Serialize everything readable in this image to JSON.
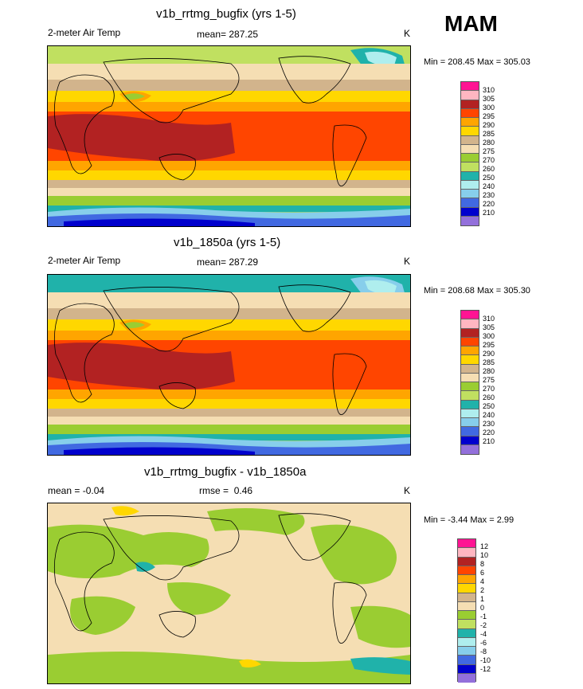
{
  "season": "MAM",
  "panels": [
    {
      "title": "v1b_rrtmg_bugfix (yrs 1-5)",
      "left_label": "2-meter Air Temp",
      "mean_label": "mean=",
      "mean_value": "287.25",
      "units": "K",
      "min_label": "Min = 208.45 Max = 305.03",
      "legend_values": [
        "310",
        "305",
        "300",
        "295",
        "290",
        "285",
        "280",
        "275",
        "270",
        "260",
        "250",
        "240",
        "230",
        "220",
        "210"
      ]
    },
    {
      "title": "v1b_1850a (yrs 1-5)",
      "left_label": "2-meter Air Temp",
      "mean_label": "mean=",
      "mean_value": "287.29",
      "units": "K",
      "min_label": "Min = 208.68 Max = 305.30",
      "legend_values": [
        "310",
        "305",
        "300",
        "295",
        "290",
        "285",
        "280",
        "275",
        "270",
        "260",
        "250",
        "240",
        "230",
        "220",
        "210"
      ]
    },
    {
      "title": "v1b_rrtmg_bugfix - v1b_1850a",
      "left_label": "mean =  -0.04",
      "mean_label": "rmse =",
      "mean_value": "0.46",
      "units": "K",
      "min_label": "Min =  -3.44 Max =   2.99",
      "legend_values": [
        "12",
        "10",
        "8",
        "6",
        "4",
        "2",
        "1",
        "0",
        "-1",
        "-2",
        "-4",
        "-6",
        "-8",
        "-10",
        "-12"
      ]
    }
  ],
  "colors": {
    "abs_scale": [
      "#ff1493",
      "#ffb6c1",
      "#b22222",
      "#ff4500",
      "#ffa500",
      "#ffd700",
      "#d2b48c",
      "#f5deb3",
      "#9acd32",
      "#c0e060",
      "#20b2aa",
      "#afeeee",
      "#87ceeb",
      "#4169e1",
      "#0000cd",
      "#9370db"
    ],
    "diff_scale": [
      "#ff1493",
      "#ffb6c1",
      "#b22222",
      "#ff4500",
      "#ffa500",
      "#ffd700",
      "#d2b48c",
      "#f5deb3",
      "#9acd32",
      "#c0e060",
      "#20b2aa",
      "#afeeee",
      "#87ceeb",
      "#4169e1",
      "#0000cd",
      "#9370db"
    ]
  }
}
